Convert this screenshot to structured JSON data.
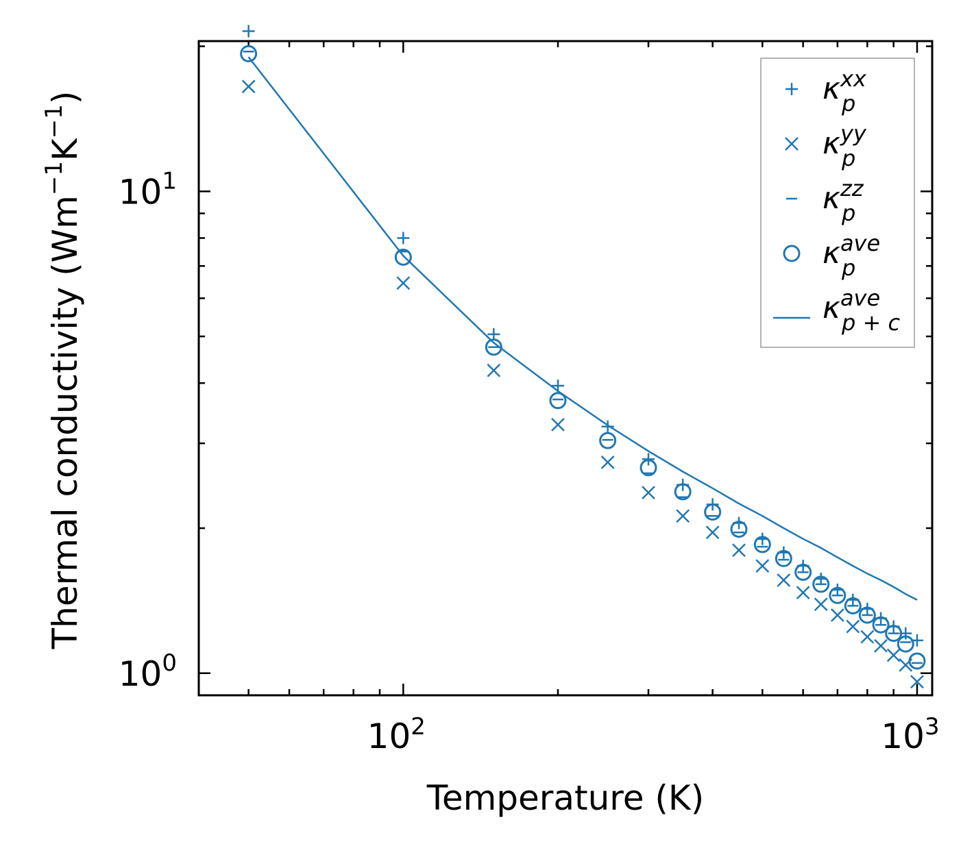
{
  "chart_data": {
    "type": "scatter",
    "xscale": "log",
    "yscale": "log",
    "xlim": [
      40,
      1070
    ],
    "ylim": [
      0.9,
      20.5
    ],
    "xlabel": "Temperature (K)",
    "ylabel": "Thermal conductivity (Wm",
    "ylabel_exp": "−1",
    "ylabel_k": "K",
    "ylabel_close": ")",
    "x_ticks": [
      {
        "value": 100,
        "base": "10",
        "exp": "2"
      },
      {
        "value": 1000,
        "base": "10",
        "exp": "3"
      }
    ],
    "y_ticks": [
      {
        "value": 1,
        "base": "10",
        "exp": "0"
      },
      {
        "value": 10,
        "base": "10",
        "exp": "1"
      }
    ],
    "color": "#1f77b4",
    "x": [
      50,
      100,
      150,
      200,
      250,
      300,
      350,
      400,
      450,
      500,
      550,
      600,
      650,
      700,
      750,
      800,
      850,
      900,
      950,
      1000
    ],
    "series": [
      {
        "name": "kappa_p^xx",
        "marker": "plus",
        "legend_main": "κ",
        "legend_sup": "xx",
        "legend_sub": "p",
        "values": [
          21.5,
          8.0,
          5.05,
          3.95,
          3.25,
          2.78,
          2.46,
          2.24,
          2.05,
          1.9,
          1.78,
          1.67,
          1.57,
          1.49,
          1.42,
          1.36,
          1.3,
          1.25,
          1.21,
          1.17
        ]
      },
      {
        "name": "kappa_p^yy",
        "marker": "x",
        "legend_main": "κ",
        "legend_sup": "yy",
        "legend_sub": "p",
        "values": [
          16.5,
          6.45,
          4.25,
          3.28,
          2.74,
          2.37,
          2.12,
          1.96,
          1.8,
          1.67,
          1.56,
          1.47,
          1.39,
          1.32,
          1.25,
          1.19,
          1.14,
          1.09,
          1.04,
          0.96
        ]
      },
      {
        "name": "kappa_p^zz",
        "marker": "dash",
        "legend_main": "κ",
        "legend_sup": "zz",
        "legend_sub": "p",
        "values": [
          19.5,
          7.5,
          4.75,
          3.7,
          3.05,
          2.6,
          2.32,
          2.12,
          1.96,
          1.83,
          1.72,
          1.62,
          1.53,
          1.45,
          1.38,
          1.32,
          1.26,
          1.21,
          1.16,
          1.05
        ]
      },
      {
        "name": "kappa_p^ave",
        "marker": "circle",
        "legend_main": "κ",
        "legend_sup": "ave",
        "legend_sub": "p",
        "values": [
          19.3,
          7.3,
          4.75,
          3.68,
          3.04,
          2.67,
          2.38,
          2.16,
          1.99,
          1.85,
          1.73,
          1.62,
          1.53,
          1.45,
          1.38,
          1.32,
          1.26,
          1.21,
          1.15,
          1.06
        ]
      },
      {
        "name": "kappa_p+c^ave",
        "marker": "line",
        "legend_main": "κ",
        "legend_sup": "ave",
        "legend_sub": "p + c",
        "values": [
          19.0,
          7.35,
          4.85,
          3.85,
          3.27,
          2.89,
          2.62,
          2.42,
          2.25,
          2.12,
          2.0,
          1.9,
          1.82,
          1.74,
          1.67,
          1.61,
          1.56,
          1.51,
          1.46,
          1.42
        ]
      }
    ]
  }
}
